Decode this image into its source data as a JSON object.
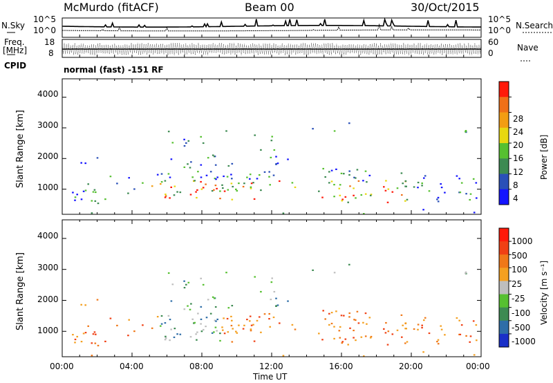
{
  "header": {
    "station": "McMurdo (fitACF)",
    "beam": "Beam 00",
    "date": "30/Oct/2015"
  },
  "status_panel": {
    "nsky_label": "N.Sky",
    "nsearch_label": "N.Search",
    "noise_ticks": [
      "10^5",
      "10^0"
    ],
    "freq_label_line1": "Freq.",
    "freq_label_line2": "[MHz]",
    "freq_ticks": [
      "18",
      "8"
    ],
    "nave_label": "Nave",
    "nave_ticks": [
      "60",
      "0"
    ],
    "cpid_label": "CPID",
    "cpid_text": "normal (fast) -151 RF"
  },
  "x_axis": {
    "label": "Time UT",
    "ticks": [
      "00:00",
      "04:00",
      "08:00",
      "12:00",
      "16:00",
      "20:00",
      "00:00"
    ]
  },
  "chart_data": [
    {
      "type": "heatmap",
      "name": "power-panel",
      "x_range_hours": [
        0,
        24
      ],
      "ylabel": "Slant Range [km]",
      "ylim": [
        180,
        4600
      ],
      "yticks": [
        "1000",
        "2000",
        "3000",
        "4000"
      ],
      "colorbar": {
        "label": "Power [dB]",
        "ticks": [
          "4",
          "8",
          "12",
          "16",
          "20",
          "24",
          "28"
        ],
        "colors": [
          "#1414ff",
          "#2a50b8",
          "#3d8a52",
          "#56c030",
          "#e8d810",
          "#f39d12",
          "#f07018",
          "#ff1a0a"
        ]
      }
    },
    {
      "type": "heatmap",
      "name": "velocity-panel",
      "x_range_hours": [
        0,
        24
      ],
      "ylabel": "Slant Range [km]",
      "ylim": [
        180,
        4600
      ],
      "yticks": [
        "1000",
        "2000",
        "3000",
        "4000"
      ],
      "colorbar": {
        "label": "Velocity [m s⁻¹]",
        "ticks": [
          "1000",
          "500",
          "100",
          "25",
          "-25",
          "-100",
          "-500",
          "-1000"
        ],
        "colors": [
          "#1a30c8",
          "#2f6ea8",
          "#3d8a52",
          "#56c030",
          "#bebebe",
          "#f4a020",
          "#f07818",
          "#f04014",
          "#ff1a0a"
        ]
      }
    }
  ]
}
